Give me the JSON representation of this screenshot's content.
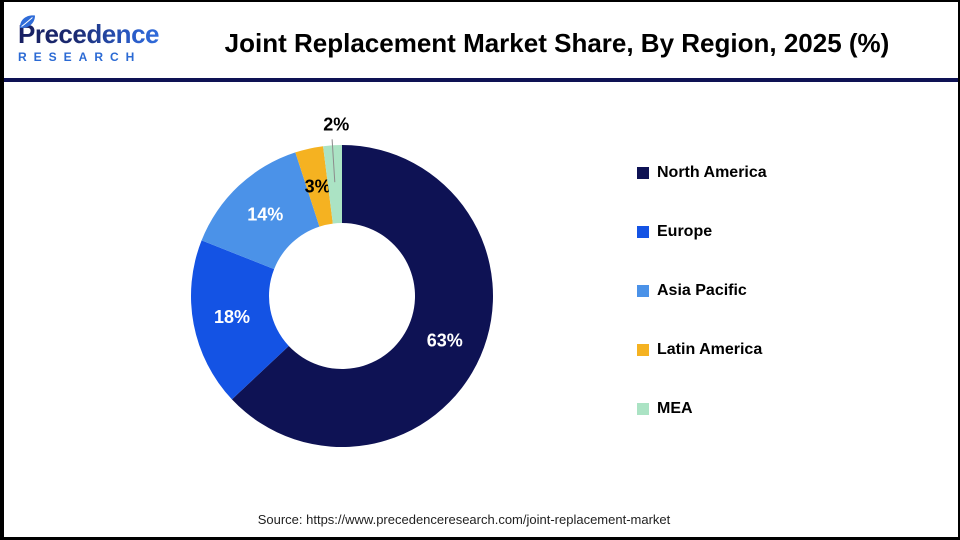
{
  "header": {
    "logo": {
      "name": "Precedence",
      "subtitle": "RESEARCH"
    },
    "title": "Joint Replacement Market Share, By Region, 2025 (%)"
  },
  "chart_data": {
    "type": "pie",
    "subtype": "donut",
    "title": "Joint Replacement Market Share, By Region, 2025 (%)",
    "unit": "%",
    "start_angle_deg": 0,
    "direction": "clockwise",
    "legend_position": "right",
    "series": [
      {
        "name": "North America",
        "value": 63,
        "color": "#0e1254",
        "label": "63%",
        "label_color": "#ffffff"
      },
      {
        "name": "Europe",
        "value": 18,
        "color": "#1453e4",
        "label": "18%",
        "label_color": "#ffffff"
      },
      {
        "name": "Asia Pacific",
        "value": 14,
        "color": "#4b92e8",
        "label": "14%",
        "label_color": "#ffffff"
      },
      {
        "name": "Latin America",
        "value": 3,
        "color": "#f5b221",
        "label": "3%",
        "label_color": "#000000"
      },
      {
        "name": "MEA",
        "value": 2,
        "color": "#abe3c4",
        "label": "2%",
        "label_color": "#000000",
        "label_outside": true
      }
    ]
  },
  "footer": {
    "source": "Source: https://www.precedenceresearch.com/joint-replacement-market"
  },
  "colors": {
    "divider": "#0e1254",
    "leader_line": "#8c8c8c",
    "brand_navy": "#181f62",
    "brand_blue": "#2b6ad4"
  }
}
